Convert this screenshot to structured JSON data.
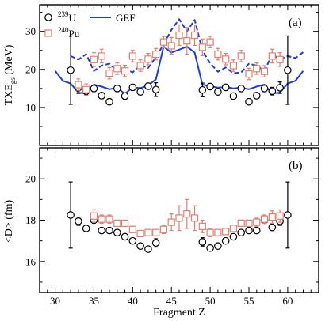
{
  "chart_data": [
    {
      "panel_label": "(a)",
      "type": "scatter",
      "ylabel": "TXE",
      "ylabel_sub": "gs",
      "ylabel_unit": "(MeV)",
      "xlim": [
        28,
        64
      ],
      "ylim": [
        0,
        37
      ],
      "x_ticks": [
        30,
        35,
        40,
        45,
        50,
        55,
        60
      ],
      "y_ticks": [
        10,
        20,
        30
      ],
      "legend": {
        "placement": "top-left",
        "u239": {
          "sup": "239",
          "text": "U"
        },
        "pu240": {
          "sup": "240",
          "text": "Pu"
        },
        "gef": "GEF"
      },
      "series": [
        {
          "name": "239U",
          "marker": "open-circle",
          "color": "#000000",
          "points": [
            {
              "x": 32,
              "y": 19.8,
              "err": 9.0
            },
            {
              "x": 33,
              "y": 15.2,
              "err": 1.5
            },
            {
              "x": 34,
              "y": 14.3,
              "err": 1.0
            },
            {
              "x": 35,
              "y": 15.0,
              "err": 0.8
            },
            {
              "x": 36,
              "y": 13.1,
              "err": 0.8
            },
            {
              "x": 37,
              "y": 11.5,
              "err": 0.8
            },
            {
              "x": 38,
              "y": 15.0,
              "err": 0.8
            },
            {
              "x": 39,
              "y": 13.0,
              "err": 0.8
            },
            {
              "x": 40,
              "y": 15.3,
              "err": 0.8
            },
            {
              "x": 41,
              "y": 14.1,
              "err": 0.8
            },
            {
              "x": 42,
              "y": 15.6,
              "err": 0.8
            },
            {
              "x": 43,
              "y": 14.7,
              "err": 1.8
            },
            {
              "x": 49,
              "y": 14.6,
              "err": 1.8
            },
            {
              "x": 50,
              "y": 15.5,
              "err": 0.8
            },
            {
              "x": 51,
              "y": 14.1,
              "err": 0.8
            },
            {
              "x": 52,
              "y": 15.3,
              "err": 0.8
            },
            {
              "x": 53,
              "y": 13.0,
              "err": 0.8
            },
            {
              "x": 54,
              "y": 15.0,
              "err": 0.8
            },
            {
              "x": 55,
              "y": 11.5,
              "err": 0.8
            },
            {
              "x": 56,
              "y": 13.1,
              "err": 0.8
            },
            {
              "x": 57,
              "y": 15.0,
              "err": 0.8
            },
            {
              "x": 58,
              "y": 14.3,
              "err": 1.0
            },
            {
              "x": 59,
              "y": 15.2,
              "err": 1.5
            },
            {
              "x": 60,
              "y": 19.8,
              "err": 9.0
            }
          ]
        },
        {
          "name": "240Pu",
          "marker": "open-square",
          "color": "#e08070",
          "points": [
            {
              "x": 33,
              "y": 16.0,
              "err": 1.5
            },
            {
              "x": 34,
              "y": 14.7,
              "err": 1.5
            },
            {
              "x": 35,
              "y": 22.6,
              "err": 1.8
            },
            {
              "x": 36,
              "y": 23.5,
              "err": 1.8
            },
            {
              "x": 37,
              "y": 19.0,
              "err": 1.5
            },
            {
              "x": 38,
              "y": 20.2,
              "err": 1.5
            },
            {
              "x": 39,
              "y": 19.6,
              "err": 1.5
            },
            {
              "x": 40,
              "y": 23.5,
              "err": 1.5
            },
            {
              "x": 41,
              "y": 21.0,
              "err": 1.5
            },
            {
              "x": 42,
              "y": 22.7,
              "err": 1.5
            },
            {
              "x": 43,
              "y": 24.0,
              "err": 1.5
            },
            {
              "x": 44,
              "y": 27.2,
              "err": 1.5
            },
            {
              "x": 45,
              "y": 26.2,
              "err": 2.2
            },
            {
              "x": 46,
              "y": 29.0,
              "err": 2.7
            },
            {
              "x": 47,
              "y": 27.5,
              "err": 3.5
            },
            {
              "x": 48,
              "y": 29.0,
              "err": 2.7
            },
            {
              "x": 49,
              "y": 25.8,
              "err": 2.2
            },
            {
              "x": 50,
              "y": 27.2,
              "err": 1.5
            },
            {
              "x": 51,
              "y": 24.0,
              "err": 1.5
            },
            {
              "x": 52,
              "y": 22.7,
              "err": 1.5
            },
            {
              "x": 53,
              "y": 21.0,
              "err": 1.5
            },
            {
              "x": 54,
              "y": 23.5,
              "err": 1.5
            },
            {
              "x": 55,
              "y": 18.8,
              "err": 1.5
            },
            {
              "x": 56,
              "y": 20.2,
              "err": 1.5
            },
            {
              "x": 57,
              "y": 19.5,
              "err": 1.5
            },
            {
              "x": 58,
              "y": 23.5,
              "err": 1.8
            },
            {
              "x": 59,
              "y": 22.6,
              "err": 1.8
            }
          ]
        },
        {
          "name": "GEF (solid)",
          "line": "solid",
          "color": "#1f3fd0",
          "x": [
            30,
            31,
            32,
            33,
            34,
            35,
            36,
            37,
            38,
            39,
            40,
            41,
            42,
            43,
            44,
            45,
            46,
            47,
            48,
            49,
            50,
            51,
            52,
            53,
            54,
            55,
            56,
            57,
            58,
            59,
            60,
            61,
            62
          ],
          "y": [
            19.6,
            17.0,
            16.3,
            13.9,
            13.7,
            16.0,
            15.5,
            14.8,
            15.2,
            13.6,
            15.3,
            15.1,
            15.8,
            17.4,
            26.0,
            24.4,
            25.2,
            26.0,
            24.4,
            16.0,
            15.6,
            15.2,
            15.4,
            15.0,
            15.2,
            14.8,
            15.5,
            16.0,
            13.7,
            13.9,
            16.3,
            17.0,
            19.6
          ]
        },
        {
          "name": "GEF (dashed)",
          "line": "dashed",
          "color": "#1f3fd0",
          "x": [
            32,
            33,
            34,
            35,
            36,
            37,
            38,
            39,
            40,
            41,
            42,
            43,
            44,
            45,
            46,
            47,
            48,
            49,
            50,
            51,
            52,
            53,
            54,
            55,
            56,
            57,
            58,
            59,
            60,
            61,
            62
          ],
          "y": [
            23.5,
            22.6,
            24.0,
            19.6,
            21.0,
            21.5,
            19.6,
            20.2,
            19.2,
            21.2,
            20.4,
            23.2,
            26.6,
            30.4,
            33.2,
            30.0,
            33.0,
            25.0,
            21.6,
            19.4,
            20.5,
            19.0,
            19.2,
            21.5,
            21.0,
            19.6,
            24.0,
            22.6,
            23.5,
            23.0,
            24.5
          ]
        }
      ]
    },
    {
      "panel_label": "(b)",
      "type": "scatter",
      "xlabel": "Fragment Z",
      "ylabel": "<D> (fm)",
      "xlim": [
        28,
        64
      ],
      "ylim": [
        14.5,
        21.5
      ],
      "x_ticks": [
        30,
        35,
        40,
        45,
        50,
        55,
        60
      ],
      "y_ticks": [
        16,
        18,
        20
      ],
      "series": [
        {
          "name": "239U",
          "marker": "open-circle",
          "color": "#000000",
          "points": [
            {
              "x": 32,
              "y": 18.25,
              "err": 1.6
            },
            {
              "x": 33,
              "y": 17.95,
              "err": 0.2
            },
            {
              "x": 34,
              "y": 17.6,
              "err": 0.15
            },
            {
              "x": 35,
              "y": 18.0,
              "err": 0.1
            },
            {
              "x": 36,
              "y": 17.5,
              "err": 0.1
            },
            {
              "x": 37,
              "y": 17.5,
              "err": 0.1
            },
            {
              "x": 38,
              "y": 17.4,
              "err": 0.1
            },
            {
              "x": 39,
              "y": 17.2,
              "err": 0.1
            },
            {
              "x": 40,
              "y": 17.0,
              "err": 0.1
            },
            {
              "x": 41,
              "y": 16.75,
              "err": 0.1
            },
            {
              "x": 42,
              "y": 16.6,
              "err": 0.1
            },
            {
              "x": 43,
              "y": 16.9,
              "err": 0.2
            },
            {
              "x": 49,
              "y": 16.95,
              "err": 0.2
            },
            {
              "x": 50,
              "y": 16.65,
              "err": 0.1
            },
            {
              "x": 51,
              "y": 16.75,
              "err": 0.1
            },
            {
              "x": 52,
              "y": 17.0,
              "err": 0.1
            },
            {
              "x": 53,
              "y": 17.2,
              "err": 0.1
            },
            {
              "x": 54,
              "y": 17.4,
              "err": 0.1
            },
            {
              "x": 55,
              "y": 17.5,
              "err": 0.1
            },
            {
              "x": 56,
              "y": 17.5,
              "err": 0.1
            },
            {
              "x": 57,
              "y": 18.0,
              "err": 0.1
            },
            {
              "x": 58,
              "y": 17.65,
              "err": 0.15
            },
            {
              "x": 59,
              "y": 17.95,
              "err": 0.2
            },
            {
              "x": 60,
              "y": 18.25,
              "err": 1.6
            }
          ]
        },
        {
          "name": "240Pu",
          "marker": "open-square",
          "color": "#e08070",
          "points": [
            {
              "x": 35,
              "y": 18.2,
              "err": 0.3
            },
            {
              "x": 36,
              "y": 18.05,
              "err": 0.2
            },
            {
              "x": 37,
              "y": 18.05,
              "err": 0.2
            },
            {
              "x": 38,
              "y": 17.85,
              "err": 0.15
            },
            {
              "x": 39,
              "y": 17.85,
              "err": 0.15
            },
            {
              "x": 40,
              "y": 17.55,
              "err": 0.15
            },
            {
              "x": 41,
              "y": 17.35,
              "err": 0.15
            },
            {
              "x": 42,
              "y": 17.4,
              "err": 0.15
            },
            {
              "x": 43,
              "y": 17.4,
              "err": 0.15
            },
            {
              "x": 44,
              "y": 17.55,
              "err": 0.2
            },
            {
              "x": 45,
              "y": 17.9,
              "err": 0.4
            },
            {
              "x": 46,
              "y": 18.1,
              "err": 0.6
            },
            {
              "x": 47,
              "y": 18.3,
              "err": 0.7
            },
            {
              "x": 48,
              "y": 18.1,
              "err": 0.6
            },
            {
              "x": 49,
              "y": 17.7,
              "err": 0.3
            },
            {
              "x": 50,
              "y": 17.4,
              "err": 0.2
            },
            {
              "x": 51,
              "y": 17.4,
              "err": 0.15
            },
            {
              "x": 52,
              "y": 17.45,
              "err": 0.15
            },
            {
              "x": 53,
              "y": 17.6,
              "err": 0.15
            },
            {
              "x": 54,
              "y": 17.85,
              "err": 0.15
            },
            {
              "x": 55,
              "y": 17.85,
              "err": 0.15
            },
            {
              "x": 56,
              "y": 17.9,
              "err": 0.2
            },
            {
              "x": 57,
              "y": 18.05,
              "err": 0.2
            },
            {
              "x": 58,
              "y": 18.15,
              "err": 0.3
            },
            {
              "x": 59,
              "y": 18.2,
              "err": 0.3
            }
          ]
        }
      ]
    }
  ]
}
